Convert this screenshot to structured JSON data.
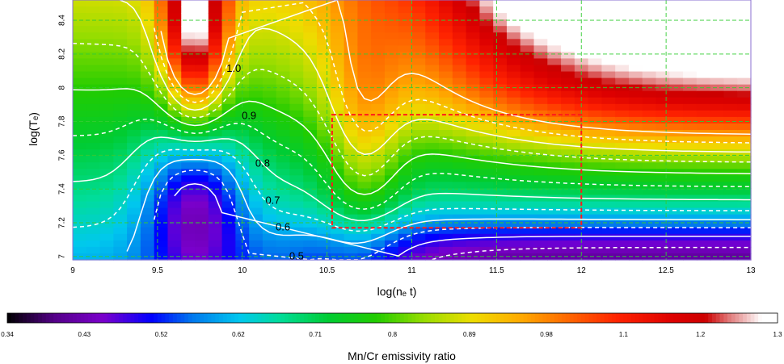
{
  "chart_data": {
    "type": "heatmap",
    "title": "",
    "xlabel": "log(nₑ t)",
    "ylabel": "log(Tₑ)",
    "xlim": [
      9,
      13
    ],
    "ylim": [
      6.98,
      8.52
    ],
    "x_ticks": [
      "9",
      "9.5",
      "10",
      "10.5",
      "11",
      "11.5",
      "12",
      "12.5",
      "13"
    ],
    "y_ticks": [
      "7",
      "7.2",
      "7.4",
      "7.6",
      "7.8",
      "8",
      "8.2",
      "8.4"
    ],
    "grid": true,
    "colorbar": {
      "label": "Mn/Cr emissivity ratio",
      "range": [
        0.34,
        1.3
      ],
      "ticks": [
        "0.34",
        "0.43",
        "0.52",
        "0.62",
        "0.71",
        "0.8",
        "0.89",
        "0.98",
        "1.1",
        "1.2",
        "1.3"
      ]
    },
    "contour_labels": [
      {
        "text": "1.0",
        "x": 9.95,
        "y": 8.11
      },
      {
        "text": "0.9",
        "x": 10.04,
        "y": 7.83
      },
      {
        "text": "0.8",
        "x": 10.12,
        "y": 7.55
      },
      {
        "text": "0.7",
        "x": 10.18,
        "y": 7.33
      },
      {
        "text": "0.6",
        "x": 10.24,
        "y": 7.17
      },
      {
        "text": "0.5",
        "x": 10.32,
        "y": 7.0
      }
    ],
    "highlight_box": {
      "x": [
        10.53,
        12.0
      ],
      "y": [
        7.17,
        7.84
      ]
    }
  }
}
